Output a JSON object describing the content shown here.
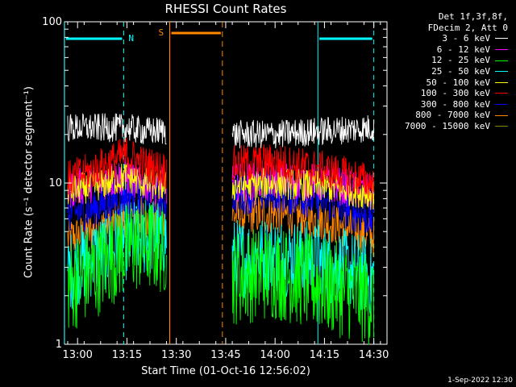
{
  "chart_data": {
    "type": "line",
    "title": "RHESSI Count Rates",
    "xlabel": "Start Time (01-Oct-16 12:56:02)",
    "ylabel": "Count Rate (s⁻¹ detector segment⁻¹)",
    "yscale": "log",
    "ylim": [
      1,
      100
    ],
    "yticks": [
      "1",
      "10",
      "100"
    ],
    "x_ticks": [
      "13:00",
      "13:15",
      "13:30",
      "13:45",
      "14:00",
      "14:15",
      "14:30"
    ],
    "x_range_minutes": [
      "12:56:02",
      "14:34:00"
    ],
    "legend_header": [
      "Det 1f,3f,8f,",
      "FDecim 2, Att 0"
    ],
    "series": [
      {
        "name": "3 - 6 keV",
        "color": "#ffffff",
        "segments": [
          [
            [
              "12:57",
              22
            ],
            [
              "13:05",
              22
            ],
            [
              "13:15",
              22
            ],
            [
              "13:20",
              21
            ],
            [
              "13:27",
              21
            ]
          ],
          [
            [
              "13:47",
              20
            ],
            [
              "14:00",
              20
            ],
            [
              "14:15",
              21
            ],
            [
              "14:30",
              22
            ]
          ]
        ]
      },
      {
        "name": "6 - 12 keV",
        "color": "#ff00ff",
        "segments": [
          [
            [
              "12:57",
              9
            ],
            [
              "13:05",
              10
            ],
            [
              "13:15",
              11
            ],
            [
              "13:20",
              10
            ],
            [
              "13:27",
              9.5
            ]
          ],
          [
            [
              "13:47",
              10
            ],
            [
              "14:00",
              10.5
            ],
            [
              "14:15",
              10
            ],
            [
              "14:30",
              8.5
            ]
          ]
        ]
      },
      {
        "name": "12 - 25 keV",
        "color": "#00ff00",
        "segments": [
          [
            [
              "12:57",
              2.3
            ],
            [
              "13:05",
              2.8
            ],
            [
              "13:15",
              4
            ],
            [
              "13:20",
              4.2
            ],
            [
              "13:27",
              4
            ]
          ],
          [
            [
              "13:47",
              2.6
            ],
            [
              "14:00",
              2.8
            ],
            [
              "14:15",
              2.3
            ],
            [
              "14:30",
              1.9
            ]
          ]
        ]
      },
      {
        "name": "25 - 50 keV",
        "color": "#00ffff",
        "segments": [
          [
            [
              "12:57",
              2.8
            ],
            [
              "13:05",
              3.5
            ],
            [
              "13:15",
              4.4
            ],
            [
              "13:20",
              4.6
            ],
            [
              "13:27",
              4.6
            ]
          ],
          [
            [
              "13:47",
              3.4
            ],
            [
              "14:00",
              3.6
            ],
            [
              "14:15",
              3.2
            ],
            [
              "14:30",
              2.6
            ]
          ]
        ]
      },
      {
        "name": "50 - 100 keV",
        "color": "#ffff00",
        "segments": [
          [
            [
              "12:57",
              9
            ],
            [
              "13:05",
              9.5
            ],
            [
              "13:15",
              11
            ],
            [
              "13:20",
              10
            ],
            [
              "13:27",
              9.5
            ]
          ],
          [
            [
              "13:47",
              9.5
            ],
            [
              "14:00",
              10
            ],
            [
              "14:15",
              9.5
            ],
            [
              "14:30",
              8.5
            ]
          ]
        ]
      },
      {
        "name": "100 - 300 keV",
        "color": "#ff0000",
        "segments": [
          [
            [
              "12:57",
              10.5
            ],
            [
              "13:05",
              12
            ],
            [
              "13:15",
              15
            ],
            [
              "13:20",
              13
            ],
            [
              "13:27",
              12
            ]
          ],
          [
            [
              "13:47",
              13
            ],
            [
              "14:00",
              13.5
            ],
            [
              "14:15",
              12
            ],
            [
              "14:30",
              10
            ]
          ]
        ]
      },
      {
        "name": "300 - 800 keV",
        "color": "#0000ff",
        "segments": [
          [
            [
              "12:57",
              6.5
            ],
            [
              "13:05",
              7
            ],
            [
              "13:15",
              8.5
            ],
            [
              "13:20",
              8.5
            ],
            [
              "13:27",
              8
            ]
          ],
          [
            [
              "13:47",
              8.5
            ],
            [
              "14:00",
              8.8
            ],
            [
              "14:15",
              7.8
            ],
            [
              "14:30",
              6
            ]
          ]
        ]
      },
      {
        "name": "800 - 7000 keV",
        "color": "#ff8800",
        "segments": [
          [
            [
              "12:57",
              4.5
            ],
            [
              "13:05",
              5
            ],
            [
              "13:15",
              6.2
            ],
            [
              "13:20",
              6.2
            ],
            [
              "13:27",
              5.8
            ]
          ],
          [
            [
              "13:47",
              6.3
            ],
            [
              "14:00",
              6.5
            ],
            [
              "14:15",
              5.8
            ],
            [
              "14:30",
              4.6
            ]
          ]
        ]
      },
      {
        "name": "7000 - 15000 keV",
        "color": "#888800",
        "segments": []
      }
    ],
    "markers": {
      "night": {
        "label": "N",
        "color": "#00ffff",
        "intervals": [
          [
            "12:56",
            "13:14"
          ],
          [
            "14:13",
            "14:30"
          ]
        ]
      },
      "saa": {
        "label": "S",
        "color": "#ff8800",
        "interval": [
          "13:28",
          "13:44"
        ]
      }
    },
    "timestamp": "1-Sep-2022 12:30"
  }
}
